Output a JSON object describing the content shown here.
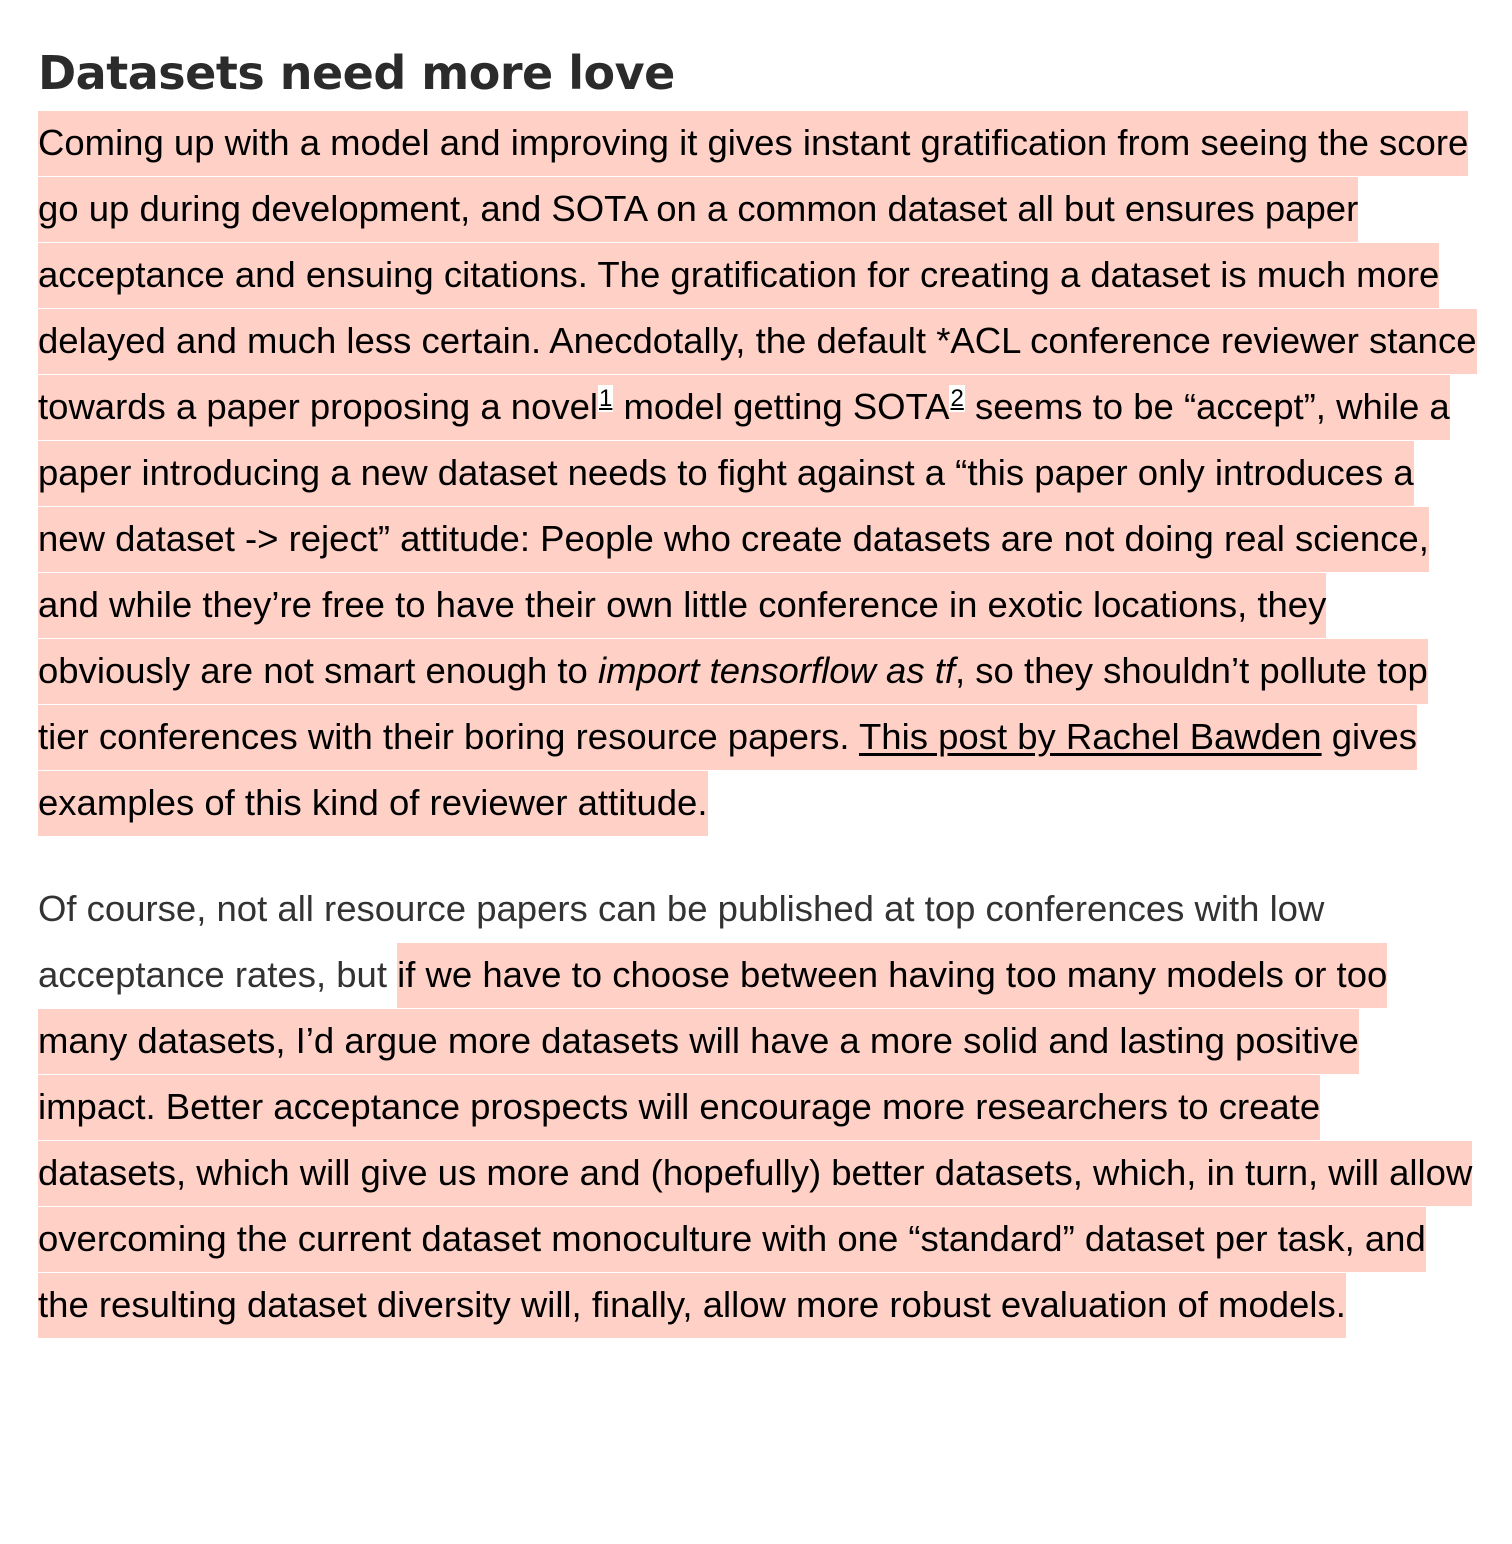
{
  "title": "Datasets need more love",
  "paragraph1": {
    "t1": "Coming up with a model and improving it gives instant gratification from seeing the score go up during development, and SOTA on a common dataset all but ensures paper acceptance and ensuing citations. The gratification for creating a dataset is much more delayed and much less certain. Anecdotally, the default *ACL conference reviewer stance towards a paper proposing a novel",
    "fn1": "1",
    "t2": " model getting SOTA",
    "fn2": "2",
    "t3": " seems to be “accept”, while a paper introducing a new dataset needs to fight against a “this paper only introduces a new dataset -> reject” attitude: People who create datasets are not doing real science, and while they’re free to have their own little conference in exotic locations, they obviously are not smart enough to ",
    "italic": "import tensorflow as tf",
    "t4": ", so they shouldn’t pollute top tier conferences with their boring resource papers. ",
    "link": "This post by Rachel Bawden",
    "t5": " gives examples of this kind of reviewer attitude."
  },
  "paragraph2": {
    "plain": "Of course, not all resource papers can be published at top conferences with low acceptance rates, but ",
    "highlighted": "if we have to choose between having too many models or too many datasets, I’d argue more datasets will have a more solid and lasting positive impact. Better acceptance prospects will encourage more researchers to create datasets, which will give us more and (hopefully) better datasets, which, in turn, will allow overcoming the current dataset monoculture with one “standard” dataset per task, and the resulting dataset diversity will, finally, allow more robust evaluation of models."
  },
  "colors": {
    "highlight": "#ffd0c6",
    "title": "#2b2b2b",
    "plain_text": "#333333"
  }
}
